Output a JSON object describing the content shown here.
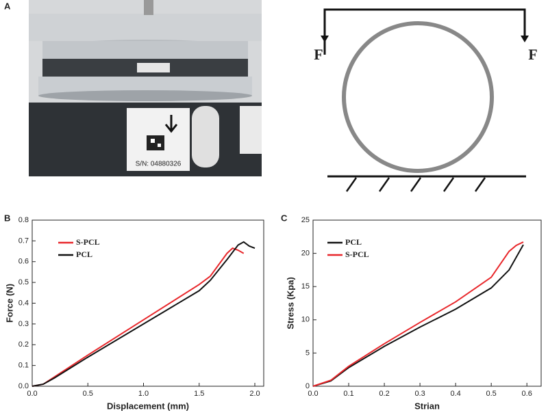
{
  "panels": [
    "A",
    "B",
    "C"
  ],
  "photo": {
    "serial": "S/N: 04880326"
  },
  "diagram": {
    "force_left": "F",
    "force_right": "F"
  },
  "chart_data": [
    {
      "type": "line",
      "x_label": "Displacement (mm)",
      "y_label": "Force (N)",
      "xlim": [
        0,
        2.08
      ],
      "ylim": [
        0,
        0.8
      ],
      "xticks": [
        {
          "value": 0,
          "label": "0.0"
        },
        0.5,
        {
          "value": 1,
          "label": "1.0"
        },
        1.5,
        {
          "value": 2,
          "label": "2.0"
        }
      ],
      "yticks": [
        {
          "value": 0,
          "label": "0.0"
        },
        0.1,
        0.2,
        0.3,
        0.4,
        0.5,
        0.6,
        0.7,
        0.8
      ],
      "series": [
        {
          "name": "S-PCL",
          "color": "#e8262a",
          "x": [
            0,
            0.1,
            0.2,
            0.5,
            1.0,
            1.5,
            1.6,
            1.75,
            1.8,
            1.85,
            1.9
          ],
          "values": [
            0,
            0.01,
            0.045,
            0.15,
            0.32,
            0.49,
            0.53,
            0.64,
            0.665,
            0.655,
            0.64
          ]
        },
        {
          "name": "PCL",
          "color": "#111111",
          "x": [
            0,
            0.1,
            0.2,
            0.5,
            1.0,
            1.5,
            1.6,
            1.75,
            1.85,
            1.9,
            1.95,
            2.0
          ],
          "values": [
            0,
            0.01,
            0.04,
            0.14,
            0.3,
            0.46,
            0.51,
            0.61,
            0.68,
            0.695,
            0.675,
            0.665
          ]
        }
      ]
    },
    {
      "type": "line",
      "x_label": "Strian",
      "y_label": "Stress (Kpa)",
      "xlim": [
        0,
        0.64
      ],
      "ylim": [
        0,
        25
      ],
      "xticks": [
        {
          "value": 0,
          "label": "0.0"
        },
        0.1,
        0.2,
        0.3,
        0.4,
        0.5,
        0.6
      ],
      "yticks": [
        0,
        5,
        10,
        15,
        20,
        25
      ],
      "series": [
        {
          "name": "PCL",
          "color": "#111111",
          "x": [
            0,
            0.05,
            0.1,
            0.2,
            0.3,
            0.4,
            0.5,
            0.55,
            0.59
          ],
          "values": [
            0,
            0.8,
            2.8,
            6,
            8.9,
            11.6,
            14.8,
            17.5,
            21.3
          ]
        },
        {
          "name": "S-PCL",
          "color": "#e8262a",
          "x": [
            0,
            0.05,
            0.1,
            0.2,
            0.3,
            0.4,
            0.5,
            0.55,
            0.57,
            0.59
          ],
          "values": [
            0,
            0.9,
            3,
            6.4,
            9.6,
            12.7,
            16.4,
            20.3,
            21.2,
            21.7
          ]
        }
      ]
    }
  ]
}
